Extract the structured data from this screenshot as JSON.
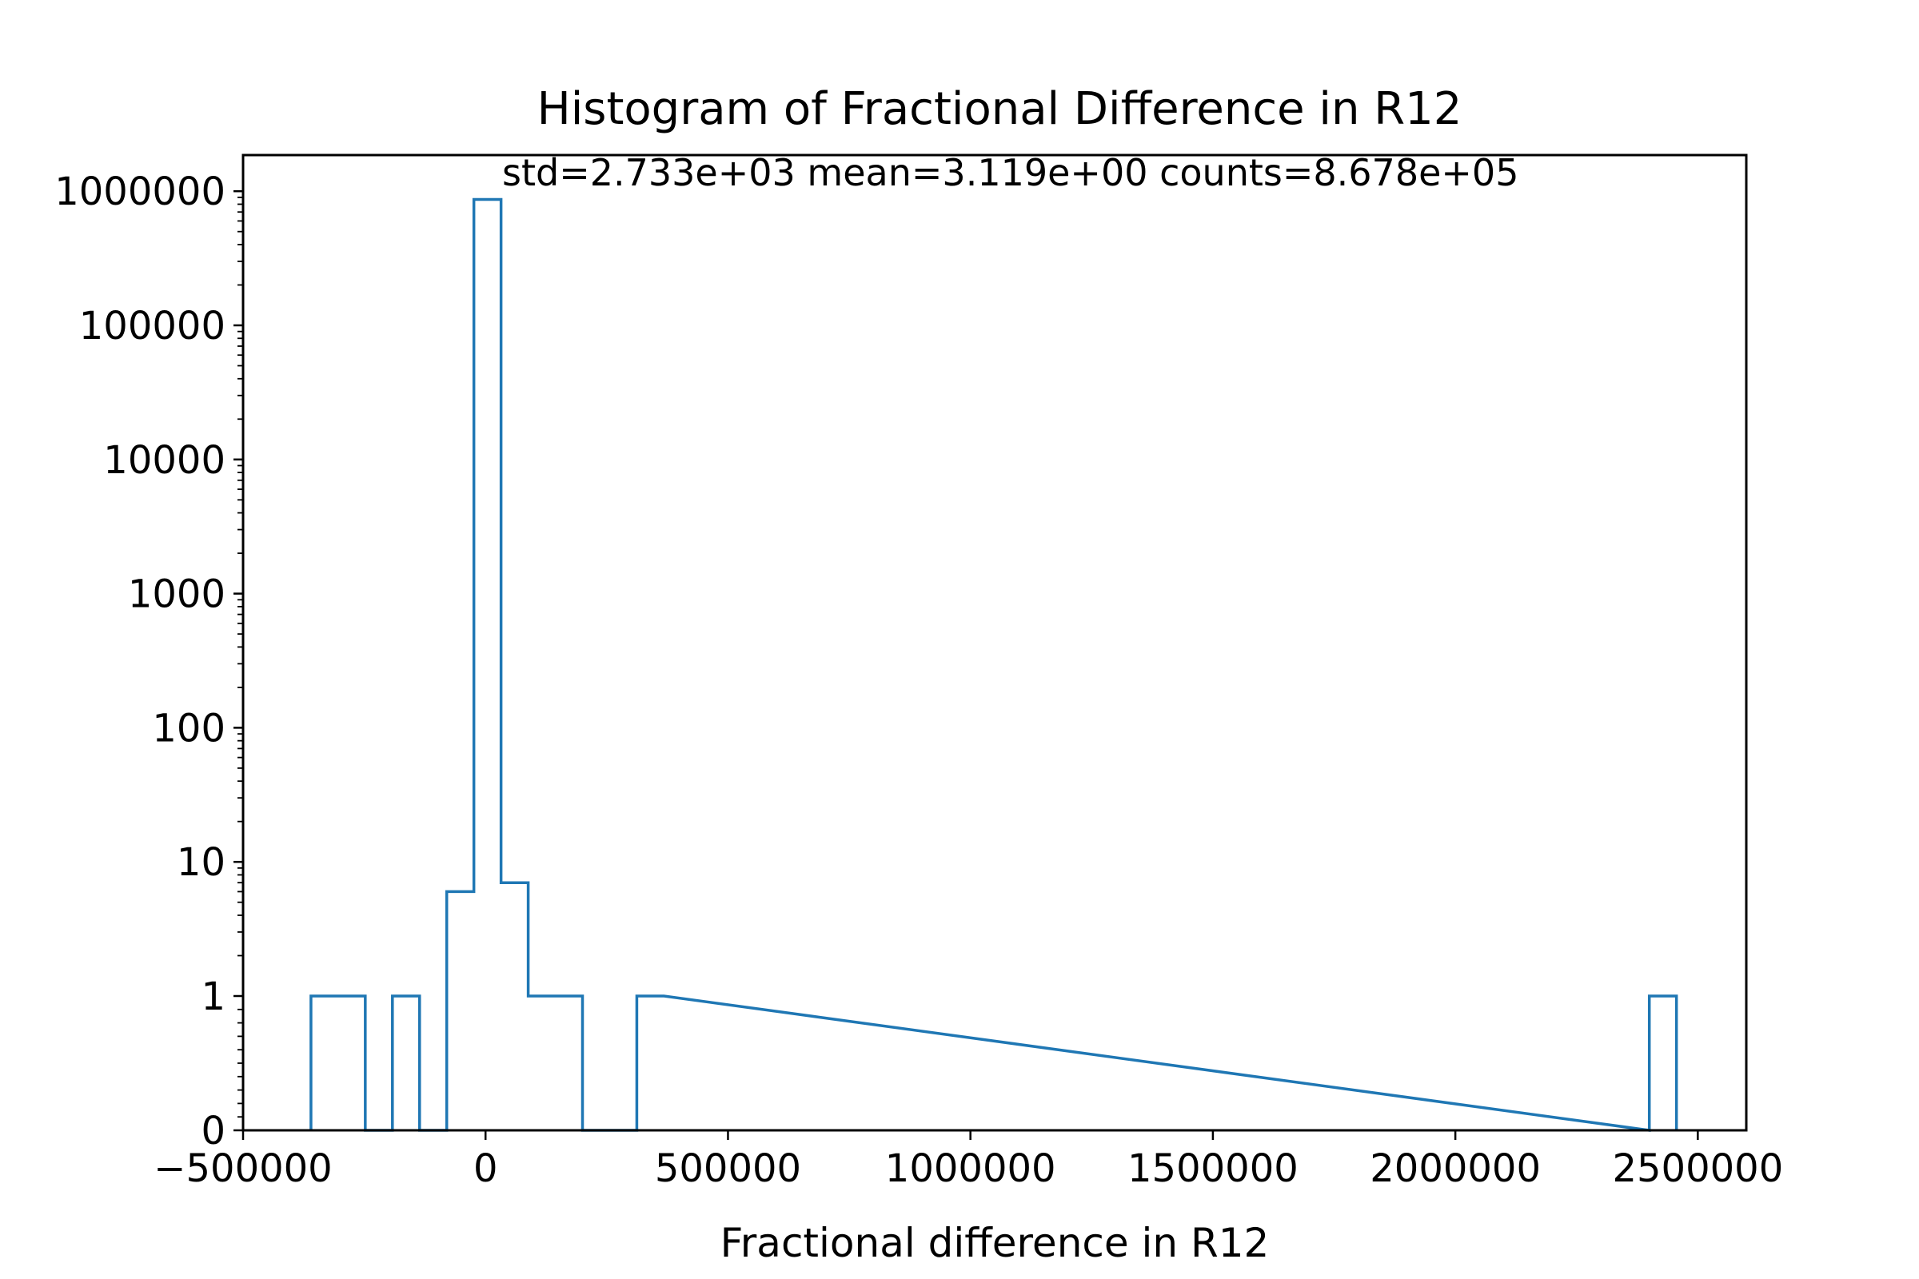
{
  "chart_data": {
    "type": "histogram",
    "title": "Histogram of Fractional Difference in R12",
    "annotation": "std=2.733e+03 mean=3.119e+00 counts=8.678e+05",
    "xlabel": "Fractional difference in R12",
    "ylabel": "",
    "xlim": [
      -500000,
      2600000
    ],
    "ylim": [
      0,
      2000000
    ],
    "yscale": "symlog",
    "grid": false,
    "legend": "none",
    "xticks": [
      -500000,
      0,
      500000,
      1000000,
      1500000,
      2000000,
      2500000
    ],
    "xtick_labels": [
      "−500000",
      "0",
      "500000",
      "1000000",
      "1500000",
      "2000000",
      "2500000"
    ],
    "yticks": [
      0,
      1,
      10,
      100,
      1000,
      10000,
      100000,
      1000000
    ],
    "ytick_labels": [
      "0",
      "1",
      "10",
      "100",
      "1000",
      "10000",
      "100000",
      "1000000"
    ],
    "series": [
      {
        "color": "#1f77b4",
        "histtype": "step",
        "bins": [
          {
            "start": -360000,
            "end": -304000,
            "count": 1
          },
          {
            "start": -304000,
            "end": -248000,
            "count": 1
          },
          {
            "start": -248000,
            "end": -192000,
            "count": 0
          },
          {
            "start": -192000,
            "end": -136000,
            "count": 1
          },
          {
            "start": -136000,
            "end": -80000,
            "count": 0
          },
          {
            "start": -80000,
            "end": -24000,
            "count": 6
          },
          {
            "start": -24000,
            "end": 32000,
            "count": 867800
          },
          {
            "start": 32000,
            "end": 88000,
            "count": 7
          },
          {
            "start": 88000,
            "end": 144000,
            "count": 1
          },
          {
            "start": 144000,
            "end": 200000,
            "count": 1
          },
          {
            "start": 200000,
            "end": 256000,
            "count": 0
          },
          {
            "start": 256000,
            "end": 312000,
            "count": 0
          },
          {
            "start": 312000,
            "end": 368000,
            "count": 1
          },
          {
            "start": 2400000,
            "end": 2456000,
            "count": 1
          }
        ]
      }
    ]
  }
}
